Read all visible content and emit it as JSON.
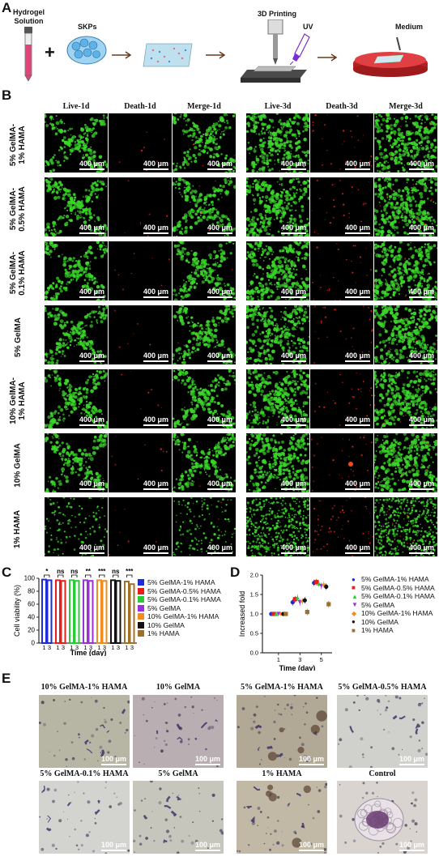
{
  "panelA": {
    "letter": "A",
    "hydrogel_label_line1": "Hydrogel",
    "hydrogel_label_line2": "Solution",
    "skps_label": "SKPs",
    "printing_label": "3D Printing",
    "uv_label": "UV",
    "medium_label": "Medium",
    "plus": "+"
  },
  "panelB": {
    "letter": "B",
    "columns": [
      "Live-1d",
      "Death-1d",
      "Merge-1d",
      "Live-3d",
      "Death-3d",
      "Merge-3d"
    ],
    "rows": [
      {
        "line1": "5% GelMA-",
        "line2": "1% HAMA"
      },
      {
        "line1": "5% GelMA-",
        "line2": "0.5% HAMA"
      },
      {
        "line1": "5% GelMA-",
        "line2": "0.1% HAMA"
      },
      {
        "line1": "5% GelMA",
        "line2": ""
      },
      {
        "line1": "10% GelMA-",
        "line2": "1% HAMA"
      },
      {
        "line1": "10% GelMA",
        "line2": ""
      },
      {
        "line1": "1% HAMA",
        "line2": ""
      }
    ],
    "scale_bar": "400 μm",
    "colors": {
      "live": "#3bd62a",
      "dead": "#e0231d",
      "bg": "#000000"
    }
  },
  "panelC": {
    "letter": "C",
    "chart_data": {
      "type": "bar",
      "ylabel": "Cell viability (%)",
      "xlabel": "Time (day)",
      "ylim": [
        0,
        100
      ],
      "yticks": [
        0,
        20,
        40,
        60,
        80,
        100
      ],
      "categories": [
        "1",
        "3"
      ],
      "series": [
        {
          "name": "5% GelMA-1% HAMA",
          "color": "#1e2bd8",
          "values": [
            98,
            97
          ]
        },
        {
          "name": "5% GelMA-0.5% HAMA",
          "color": "#e3201b",
          "values": [
            97,
            96
          ]
        },
        {
          "name": "5% GelMA-0.1% HAMA",
          "color": "#2ec93a",
          "values": [
            97,
            96
          ]
        },
        {
          "name": "5% GelMA",
          "color": "#9b30d9",
          "values": [
            97,
            96
          ]
        },
        {
          "name": "10% GelMA-1% HAMA",
          "color": "#f28c1e",
          "values": [
            97,
            96
          ]
        },
        {
          "name": "10% GelMA",
          "color": "#111111",
          "values": [
            97,
            96
          ]
        },
        {
          "name": "1% HAMA",
          "color": "#a0702a",
          "values": [
            95,
            91
          ]
        }
      ],
      "significance": [
        "*",
        "ns",
        "ns",
        "**",
        "***",
        "ns",
        "***"
      ]
    }
  },
  "panelD": {
    "letter": "D",
    "chart_data": {
      "type": "scatter",
      "ylabel": "Increased fold",
      "xlabel": "Time (day)",
      "ylim": [
        0,
        2.0
      ],
      "yticks": [
        0,
        0.5,
        1.0,
        1.5,
        2.0
      ],
      "xticks": [
        1,
        3,
        5
      ],
      "xlim": [
        -0.5,
        6
      ],
      "series": [
        {
          "name": "5% GelMA-1% HAMA",
          "marker": "circle",
          "color": "#1e2bd8",
          "x": [
            1,
            3,
            5
          ],
          "y": [
            1.0,
            1.3,
            1.8
          ]
        },
        {
          "name": "5% GelMA-0.5% HAMA",
          "marker": "square",
          "color": "#e3201b",
          "x": [
            1,
            3,
            5
          ],
          "y": [
            1.0,
            1.38,
            1.82
          ]
        },
        {
          "name": "5% GelMA-0.1% HAMA",
          "marker": "triangle",
          "color": "#2ec93a",
          "x": [
            1,
            3,
            5
          ],
          "y": [
            1.0,
            1.42,
            1.78
          ]
        },
        {
          "name": "5% GelMA",
          "marker": "triangle-down",
          "color": "#9b30d9",
          "x": [
            1,
            3,
            5
          ],
          "y": [
            1.0,
            1.3,
            1.72
          ]
        },
        {
          "name": "10% GelMA-1% HAMA",
          "marker": "diamond",
          "color": "#f28c1e",
          "x": [
            1,
            3,
            5
          ],
          "y": [
            1.0,
            1.33,
            1.75
          ]
        },
        {
          "name": "10% GelMA",
          "marker": "circle",
          "color": "#111111",
          "x": [
            1,
            3,
            5
          ],
          "y": [
            1.0,
            1.35,
            1.7
          ]
        },
        {
          "name": "1% HAMA",
          "marker": "square",
          "color": "#a0702a",
          "x": [
            1,
            3,
            5
          ],
          "y": [
            1.0,
            1.05,
            1.25
          ]
        }
      ]
    }
  },
  "panelE": {
    "letter": "E",
    "images": [
      {
        "title": "10% GelMA-1% HAMA",
        "tone": "#b7b5a3"
      },
      {
        "title": "10% GelMA",
        "tone": "#b9aeb2"
      },
      {
        "title": "5% GelMA-1% HAMA",
        "tone": "#b1a996"
      },
      {
        "title": "5% GelMA-0.5% HAMA",
        "tone": "#d0d1cc"
      },
      {
        "title": "5% GelMA-0.1% HAMA",
        "tone": "#d3d3d0"
      },
      {
        "title": "5% GelMA",
        "tone": "#c7c6bd"
      },
      {
        "title": "1% HAMA",
        "tone": "#c1b8a6"
      },
      {
        "title": "Control",
        "tone": "#d9d4cf"
      }
    ],
    "scale_bar": "100 μm"
  }
}
